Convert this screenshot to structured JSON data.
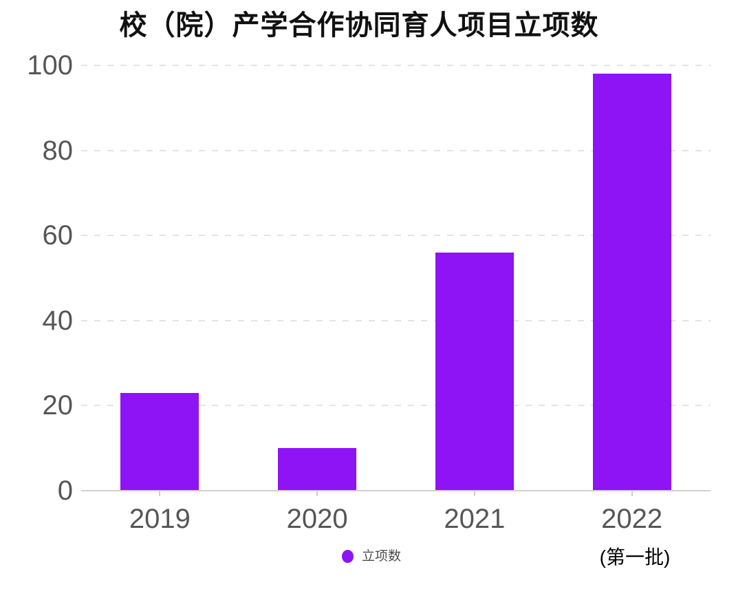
{
  "chart_data": {
    "type": "bar",
    "title": "校（院）产学合作协同育人项目立项数",
    "categories": [
      "2019",
      "2020",
      "2021",
      "2022"
    ],
    "series": [
      {
        "name": "立项数",
        "values": [
          23,
          10,
          56,
          98
        ]
      }
    ],
    "xlabel": "",
    "ylabel": "",
    "ylim": [
      0,
      100
    ],
    "yticks": [
      0,
      20,
      40,
      60,
      80,
      100
    ],
    "grid": "horizontal-dashed",
    "legend_position": "bottom-center",
    "annotations": [
      {
        "text": "(第一批)",
        "under_category": "2022"
      }
    ]
  },
  "legend": {
    "label": "立项数"
  },
  "annotation": {
    "text": "(第一批)"
  },
  "colors": {
    "bar": "#8E13F5",
    "legend_dot": "#8E13F5",
    "title_text": "#111111",
    "axis_label": "#565656",
    "legend_text": "#4c4c4c",
    "gridline": "#e4e4e4",
    "axis_line": "#cfcfcf",
    "annotation_text": "#000000",
    "background": "#ffffff"
  }
}
